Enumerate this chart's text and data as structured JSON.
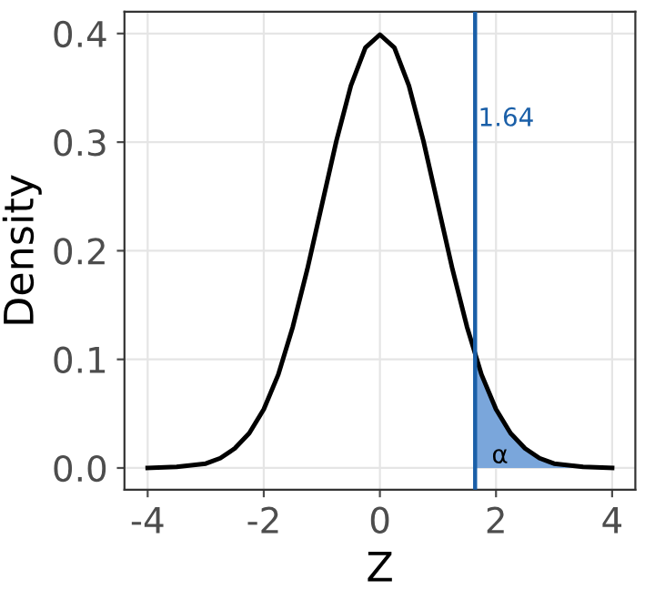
{
  "chart_data": {
    "type": "line",
    "xlabel": "Z",
    "ylabel": "Density",
    "series": [
      {
        "color": "#000000",
        "x": [
          -4,
          -3.5,
          -3,
          -2.75,
          -2.5,
          -2.25,
          -2,
          -1.75,
          -1.5,
          -1.25,
          -1,
          -0.75,
          -0.5,
          -0.25,
          0,
          0.25,
          0.5,
          0.75,
          1,
          1.25,
          1.5,
          1.75,
          2,
          2.25,
          2.5,
          2.75,
          3,
          3.5,
          4
        ],
        "values": [
          0.0,
          0.001,
          0.004,
          0.009,
          0.018,
          0.032,
          0.054,
          0.086,
          0.13,
          0.183,
          0.242,
          0.301,
          0.352,
          0.387,
          0.399,
          0.387,
          0.352,
          0.301,
          0.242,
          0.183,
          0.13,
          0.086,
          0.054,
          0.032,
          0.018,
          0.009,
          0.004,
          0.001,
          0.0
        ]
      },
      {
        "type": "area",
        "color": "#7aa6db",
        "x": [
          1.64,
          1.75,
          2,
          2.25,
          2.5,
          2.75,
          3,
          3.5,
          4
        ],
        "values": [
          0.104,
          0.086,
          0.054,
          0.032,
          0.018,
          0.009,
          0.004,
          0.001,
          0.0
        ]
      }
    ],
    "ref_lines": [
      {
        "axis": "x",
        "value": 1.64,
        "label": "1.64",
        "color": "#1a5fa8",
        "line_style": "solid"
      }
    ],
    "annotations": [
      "α"
    ],
    "xlim": [
      -4.4,
      4.4
    ],
    "ylim": [
      -0.02,
      0.42
    ],
    "xticks": [
      -4,
      -2,
      0,
      2,
      4
    ],
    "yticks": [
      {
        "value": 0,
        "label": "0.0"
      },
      {
        "value": 0.1,
        "label": "0.1"
      },
      {
        "value": 0.2,
        "label": "0.2"
      },
      {
        "value": 0.3,
        "label": "0.3"
      },
      {
        "value": 0.4,
        "label": "0.4"
      }
    ],
    "grid": true
  }
}
